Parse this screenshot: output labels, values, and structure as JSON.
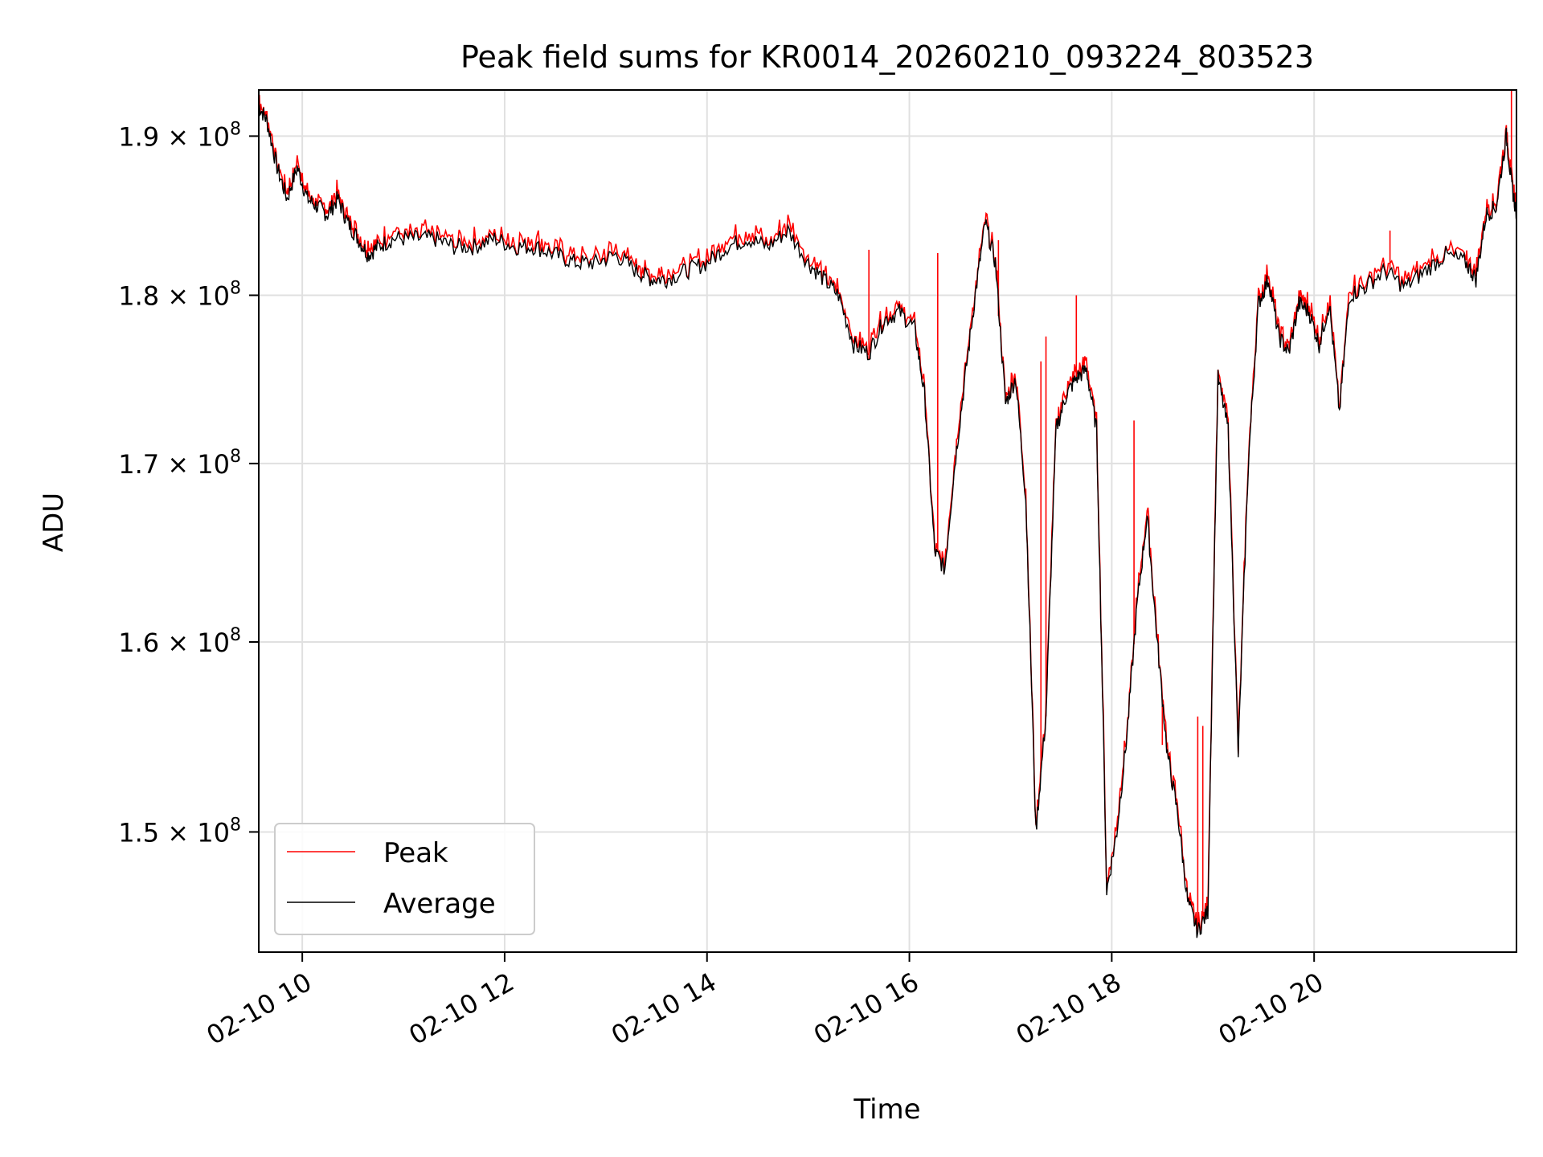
{
  "chart_data": {
    "type": "line",
    "title": "Peak field sums for KR0014_20260210_093224_803523",
    "xlabel": "Time",
    "ylabel": "ADU",
    "x_unit": "hours on 02-10",
    "xlim": [
      9.57,
      22.0
    ],
    "ylim": [
      144000000.0,
      193000000.0
    ],
    "y_scale": "log",
    "grid": true,
    "legend_position": "lower-left",
    "x_ticks": [
      {
        "value": 10,
        "label": "02-10 10"
      },
      {
        "value": 12,
        "label": "02-10 12"
      },
      {
        "value": 14,
        "label": "02-10 14"
      },
      {
        "value": 16,
        "label": "02-10 16"
      },
      {
        "value": 18,
        "label": "02-10 18"
      },
      {
        "value": 20,
        "label": "02-10 20"
      }
    ],
    "y_ticks": [
      {
        "value": 150000000.0,
        "mantissa": "1.5",
        "exp": "8"
      },
      {
        "value": 160000000.0,
        "mantissa": "1.6",
        "exp": "8"
      },
      {
        "value": 170000000.0,
        "mantissa": "1.7",
        "exp": "8"
      },
      {
        "value": 180000000.0,
        "mantissa": "1.8",
        "exp": "8"
      },
      {
        "value": 190000000.0,
        "mantissa": "1.9",
        "exp": "8"
      }
    ],
    "y_tick_base": "10",
    "series": [
      {
        "name": "Peak",
        "color": "#ff0000"
      },
      {
        "name": "Average",
        "color": "#000000"
      }
    ],
    "x": [
      9.57,
      9.65,
      9.75,
      9.85,
      9.95,
      10.05,
      10.15,
      10.25,
      10.35,
      10.45,
      10.55,
      10.65,
      10.75,
      10.9,
      11.1,
      11.3,
      11.5,
      11.7,
      11.9,
      12.1,
      12.3,
      12.5,
      12.7,
      12.9,
      13.1,
      13.3,
      13.45,
      13.6,
      13.8,
      14.0,
      14.2,
      14.4,
      14.6,
      14.8,
      15.0,
      15.15,
      15.3,
      15.45,
      15.6,
      15.75,
      15.9,
      16.05,
      16.15,
      16.25,
      16.35,
      16.45,
      16.55,
      16.65,
      16.75,
      16.85,
      16.95,
      17.05,
      17.15,
      17.25,
      17.35,
      17.45,
      17.55,
      17.65,
      17.75,
      17.85,
      17.95,
      18.05,
      18.15,
      18.25,
      18.35,
      18.45,
      18.55,
      18.65,
      18.75,
      18.85,
      18.95,
      19.05,
      19.15,
      19.25,
      19.35,
      19.45,
      19.55,
      19.65,
      19.75,
      19.85,
      19.95,
      20.05,
      20.15,
      20.25,
      20.35,
      20.5,
      20.7,
      20.9,
      21.1,
      21.3,
      21.5,
      21.6,
      21.7,
      21.8,
      21.9,
      21.95,
      22.0
    ],
    "average": [
      192000000.0,
      191000000.0,
      188000000.0,
      186000000.0,
      188000000.0,
      186000000.0,
      185500000.0,
      185000000.0,
      186000000.0,
      184500000.0,
      183500000.0,
      182500000.0,
      183000000.0,
      183500000.0,
      183500000.0,
      183500000.0,
      183000000.0,
      183000000.0,
      183500000.0,
      183000000.0,
      183000000.0,
      182500000.0,
      182000000.0,
      182000000.0,
      182500000.0,
      181500000.0,
      181000000.0,
      181000000.0,
      181500000.0,
      182000000.0,
      183000000.0,
      183500000.0,
      183000000.0,
      184000000.0,
      182000000.0,
      181000000.0,
      180000000.0,
      177000000.0,
      176500000.0,
      178500000.0,
      179000000.0,
      178000000.0,
      174000000.0,
      165000000.0,
      164000000.0,
      170000000.0,
      175000000.0,
      180000000.0,
      184500000.0,
      182000000.0,
      173500000.0,
      175000000.0,
      168000000.0,
      150000000.0,
      156000000.0,
      172000000.0,
      174000000.0,
      175000000.0,
      175500000.0,
      172000000.0,
      147000000.0,
      150000000.0,
      155000000.0,
      162000000.0,
      167000000.0,
      160000000.0,
      154000000.0,
      151000000.0,
      146500000.0,
      145000000.0,
      146000000.0,
      175000000.0,
      172000000.0,
      154000000.0,
      170000000.0,
      179500000.0,
      181000000.0,
      177500000.0,
      176500000.0,
      179500000.0,
      179000000.0,
      177000000.0,
      179500000.0,
      173000000.0,
      180000000.0,
      180500000.0,
      181500000.0,
      180500000.0,
      181500000.0,
      182500000.0,
      182000000.0,
      181000000.0,
      185000000.0,
      185500000.0,
      190000000.0,
      187000000.0,
      185000000.0
    ],
    "peak_spikes": [
      {
        "x": 15.6,
        "y": 182800000.0
      },
      {
        "x": 16.28,
        "y": 182600000.0
      },
      {
        "x": 16.88,
        "y": 183400000.0
      },
      {
        "x": 17.3,
        "y": 176000000.0
      },
      {
        "x": 17.35,
        "y": 177500000.0
      },
      {
        "x": 17.65,
        "y": 180000000.0
      },
      {
        "x": 18.22,
        "y": 172500000.0
      },
      {
        "x": 18.5,
        "y": 154500000.0
      },
      {
        "x": 18.85,
        "y": 156000000.0
      },
      {
        "x": 18.9,
        "y": 155500000.0
      },
      {
        "x": 20.75,
        "y": 184000000.0
      },
      {
        "x": 21.95,
        "y": 193000000.0
      }
    ]
  }
}
